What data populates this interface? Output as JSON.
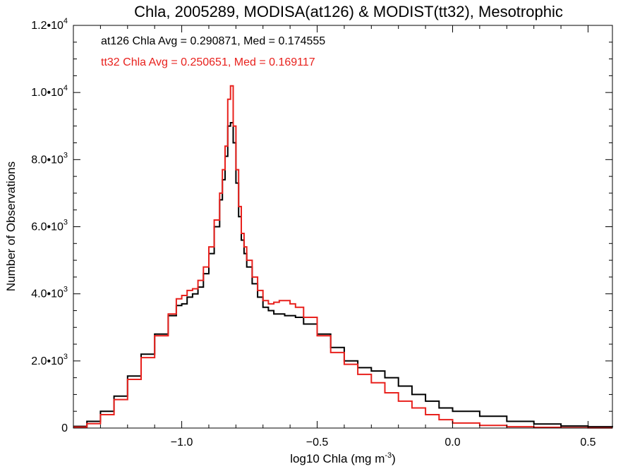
{
  "chart_data": {
    "type": "line",
    "title": "Chla, 2005289, MODISA(at126) & MODIST(tt32), Mesotrophic",
    "xlabel_main": "log10 Chla (mg m",
    "xlabel_sup": "-3",
    "xlabel_tail": ")",
    "ylabel": "Number of Observations",
    "xlim": [
      -1.4,
      0.59
    ],
    "ylim": [
      0,
      12000
    ],
    "x_ticks": [
      {
        "value": -1.0,
        "label": "−1.0"
      },
      {
        "value": -0.5,
        "label": "−0.5"
      },
      {
        "value": 0.0,
        "label": "0.0"
      },
      {
        "value": 0.5,
        "label": "0.5"
      }
    ],
    "y_ticks": [
      {
        "value": 0,
        "label": "0",
        "exp": ""
      },
      {
        "value": 2000,
        "label": "2.0•10",
        "exp": "3"
      },
      {
        "value": 4000,
        "label": "4.0•10",
        "exp": "3"
      },
      {
        "value": 6000,
        "label": "6.0•10",
        "exp": "3"
      },
      {
        "value": 8000,
        "label": "8.0•10",
        "exp": "3"
      },
      {
        "value": 10000,
        "label": "1.0•10",
        "exp": "4"
      },
      {
        "value": 12000,
        "label": "1.2•10",
        "exp": "4"
      }
    ],
    "annotations": [
      {
        "text": "at126 Chla Avg = 0.290871, Med = 0.174555",
        "color": "#000000"
      },
      {
        "text": "tt32 Chla Avg = 0.250651, Med = 0.169117",
        "color": "#e8211d"
      }
    ],
    "series": [
      {
        "color": "#000000",
        "x": [
          -1.4,
          -1.35,
          -1.3,
          -1.25,
          -1.2,
          -1.15,
          -1.1,
          -1.05,
          -1.02,
          -1.0,
          -0.98,
          -0.96,
          -0.94,
          -0.92,
          -0.9,
          -0.88,
          -0.86,
          -0.85,
          -0.84,
          -0.83,
          -0.82,
          -0.81,
          -0.8,
          -0.79,
          -0.78,
          -0.77,
          -0.76,
          -0.74,
          -0.72,
          -0.7,
          -0.68,
          -0.66,
          -0.64,
          -0.62,
          -0.6,
          -0.58,
          -0.55,
          -0.5,
          -0.45,
          -0.4,
          -0.35,
          -0.3,
          -0.25,
          -0.2,
          -0.15,
          -0.1,
          -0.05,
          0.0,
          0.1,
          0.2,
          0.3,
          0.4,
          0.5,
          0.59
        ],
        "y": [
          50,
          200,
          500,
          950,
          1550,
          2200,
          2800,
          3350,
          3650,
          3700,
          3900,
          4000,
          4200,
          4600,
          5200,
          6000,
          6800,
          7400,
          8100,
          9000,
          9100,
          8500,
          7300,
          6300,
          5600,
          5200,
          4800,
          4300,
          3900,
          3600,
          3500,
          3400,
          3400,
          3350,
          3350,
          3300,
          3100,
          2800,
          2400,
          2000,
          1800,
          1700,
          1500,
          1250,
          1000,
          800,
          600,
          500,
          350,
          200,
          120,
          60,
          40,
          30
        ]
      },
      {
        "color": "#e8211d",
        "x": [
          -1.4,
          -1.35,
          -1.3,
          -1.25,
          -1.2,
          -1.15,
          -1.1,
          -1.05,
          -1.02,
          -1.0,
          -0.98,
          -0.96,
          -0.94,
          -0.92,
          -0.9,
          -0.88,
          -0.86,
          -0.85,
          -0.84,
          -0.83,
          -0.82,
          -0.81,
          -0.8,
          -0.79,
          -0.78,
          -0.77,
          -0.76,
          -0.74,
          -0.72,
          -0.7,
          -0.68,
          -0.66,
          -0.64,
          -0.62,
          -0.6,
          -0.58,
          -0.55,
          -0.5,
          -0.45,
          -0.4,
          -0.35,
          -0.3,
          -0.25,
          -0.2,
          -0.15,
          -0.1,
          -0.05,
          0.0,
          0.1,
          0.2,
          0.3,
          0.4,
          0.5,
          0.59
        ],
        "y": [
          30,
          130,
          400,
          850,
          1450,
          2100,
          2750,
          3400,
          3850,
          3950,
          4100,
          4150,
          4400,
          4800,
          5400,
          6200,
          7000,
          7700,
          8400,
          9800,
          10200,
          9000,
          7700,
          6600,
          5800,
          5400,
          5000,
          4500,
          4100,
          3800,
          3700,
          3750,
          3800,
          3800,
          3700,
          3600,
          3300,
          2750,
          2250,
          1900,
          1600,
          1350,
          1050,
          800,
          600,
          400,
          250,
          150,
          80,
          40,
          20,
          10,
          5,
          5
        ]
      }
    ]
  }
}
